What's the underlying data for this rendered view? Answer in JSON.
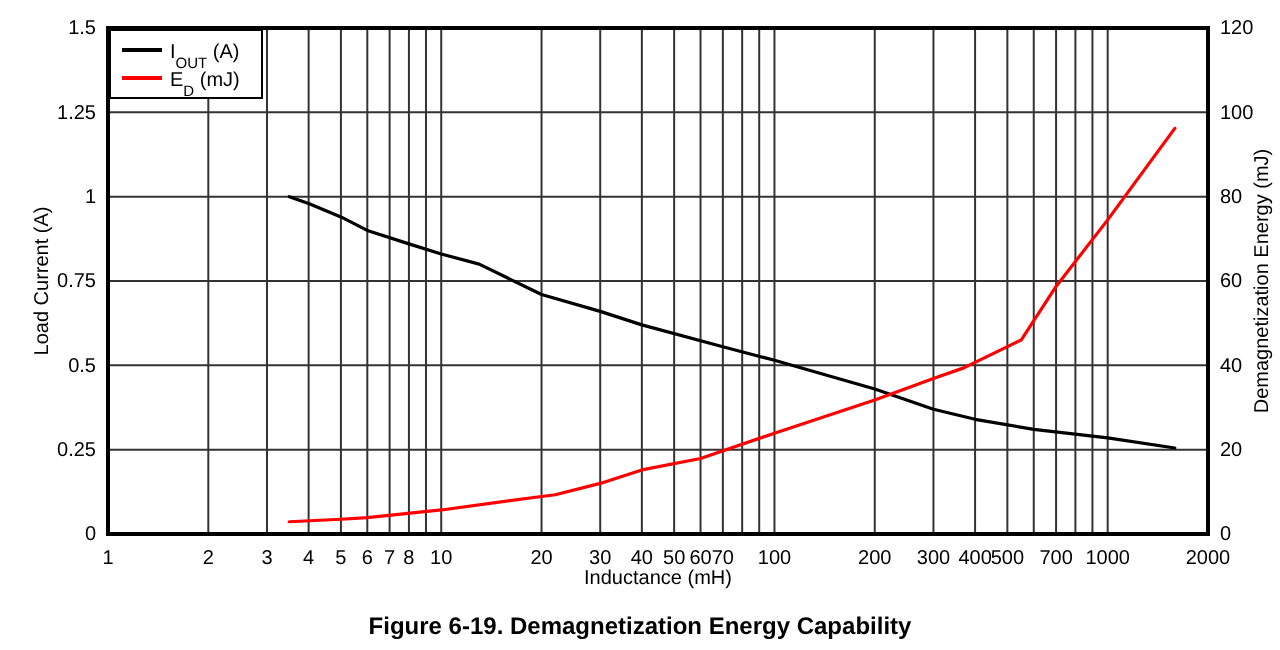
{
  "chart_data": {
    "type": "line",
    "title": "Figure 6-19. Demagnetization Energy Capability",
    "xlabel": "Inductance (mH)",
    "ylabel": "Load Current (A)",
    "y2label": "Demagnetization Energy (mJ)",
    "log": "x",
    "grid": true,
    "legend": "top left",
    "line_style": "solid",
    "marker": "none",
    "xlim": [
      1,
      2000
    ],
    "xticks": [
      1,
      2,
      3,
      4,
      5,
      6,
      7,
      8,
      {
        "value": 9,
        "label": null
      },
      10,
      20,
      30,
      40,
      50,
      60,
      70,
      {
        "value": 80,
        "label": null
      },
      {
        "value": 90,
        "label": null
      },
      100,
      200,
      300,
      400,
      500,
      {
        "value": 600,
        "label": null
      },
      700,
      {
        "value": 800,
        "label": null
      },
      {
        "value": 900,
        "label": null
      },
      1000,
      2000
    ],
    "ylim": [
      0,
      1.5
    ],
    "yticks": [
      0,
      0.25,
      0.5,
      0.75,
      1,
      1.25,
      1.5
    ],
    "y2lim": [
      0,
      120
    ],
    "y2ticks": [
      0,
      20,
      40,
      60,
      80,
      100,
      120
    ],
    "series": [
      {
        "name": "I$_{OUT}$ (A)",
        "color": "#000000",
        "x": [
          3.5,
          4,
          5,
          6,
          8,
          10,
          13,
          20,
          30,
          40,
          70,
          100,
          200,
          300,
          400,
          600,
          1000,
          1590
        ],
        "values": [
          1,
          0.98,
          0.94,
          0.9,
          0.86,
          0.83,
          0.8,
          0.71,
          0.66,
          0.62,
          0.555,
          0.515,
          0.43,
          0.37,
          0.34,
          0.31,
          0.285,
          0.255
        ]
      },
      {
        "name": "E$_{D}$ (mJ)",
        "color": "#ff0000",
        "axis": "y2",
        "x": [
          3.5,
          5,
          6,
          10,
          20,
          22,
          30,
          40,
          60,
          100,
          200,
          300,
          370,
          550,
          700,
          1000,
          1590
        ],
        "values": [
          2.9,
          3.5,
          3.9,
          5.7,
          8.9,
          9.3,
          12,
          15.2,
          17.9,
          23.9,
          31.8,
          36.9,
          39.4,
          46,
          58.7,
          74.5,
          96.2
        ]
      }
    ]
  }
}
